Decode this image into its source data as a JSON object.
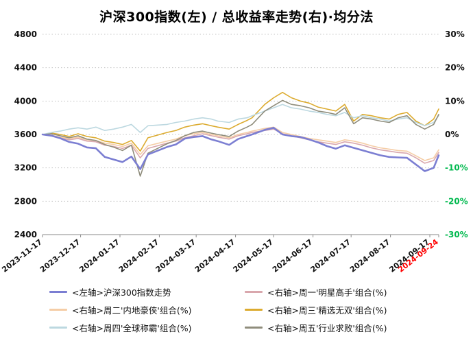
{
  "title": "沪深300指数(左) / 总收益率走势(右)·均分法",
  "chart_data": {
    "type": "line",
    "x": [
      "2023-11-17",
      "2023-11-24",
      "2023-12-01",
      "2023-12-08",
      "2023-12-15",
      "2023-12-22",
      "2023-12-29",
      "2024-01-05",
      "2024-01-12",
      "2024-01-19",
      "2024-01-26",
      "2024-02-02",
      "2024-02-08",
      "2024-02-23",
      "2024-03-01",
      "2024-03-08",
      "2024-03-15",
      "2024-03-22",
      "2024-03-29",
      "2024-04-03",
      "2024-04-12",
      "2024-04-19",
      "2024-04-26",
      "2024-04-30",
      "2024-05-10",
      "2024-05-17",
      "2024-05-24",
      "2024-05-31",
      "2024-06-07",
      "2024-06-14",
      "2024-06-21",
      "2024-06-28",
      "2024-07-05",
      "2024-07-12",
      "2024-07-19",
      "2024-07-26",
      "2024-08-02",
      "2024-08-09",
      "2024-08-16",
      "2024-08-23",
      "2024-08-30",
      "2024-09-06",
      "2024-09-13",
      "2024-09-20",
      "2024-09-24"
    ],
    "series": [
      {
        "name": "<左轴>沪深300指数走势",
        "axis": "left",
        "color": "#7b7ed2",
        "width": 2.6,
        "values": [
          3600,
          3585,
          3555,
          3510,
          3490,
          3445,
          3435,
          3330,
          3300,
          3270,
          3335,
          3185,
          3360,
          3450,
          3480,
          3550,
          3570,
          3580,
          3540,
          3520,
          3475,
          3545,
          3580,
          3600,
          3655,
          3680,
          3600,
          3580,
          3570,
          3540,
          3505,
          3460,
          3430,
          3470,
          3440,
          3410,
          3380,
          3350,
          3330,
          3325,
          3320,
          3240,
          3160,
          3200,
          3350
        ]
      },
      {
        "name": "<右轴>周一'明星高手'组合(%)",
        "axis": "right",
        "color": "#d9a7ad",
        "width": 1.6,
        "values": [
          0,
          -0.4,
          -1,
          -1.6,
          -1.2,
          -2,
          -2.2,
          -3.2,
          -3.6,
          -4.2,
          -3.2,
          -7,
          -4.2,
          -2.6,
          -2,
          -1,
          -0.4,
          0.2,
          -0.4,
          -0.8,
          -1.4,
          -0.4,
          0.2,
          0.6,
          1.2,
          1.6,
          0.2,
          -0.4,
          -1,
          -1.6,
          -2.2,
          -2.6,
          -3,
          -2.2,
          -2.6,
          -3.2,
          -4,
          -4.6,
          -5,
          -5.4,
          -5.6,
          -7,
          -8.6,
          -7.8,
          -5.4
        ]
      },
      {
        "name": "<右轴>周二'内地豪侠'组合(%)",
        "axis": "right",
        "color": "#f5cda6",
        "width": 1.6,
        "values": [
          0,
          -0.2,
          -0.8,
          -1.2,
          -0.8,
          -1.6,
          -1.8,
          -2.6,
          -3,
          -3.6,
          -2.6,
          -6,
          -3.4,
          -2,
          -1.4,
          -0.4,
          0.2,
          0.6,
          0,
          -0.4,
          -1,
          0,
          0.6,
          1,
          1.8,
          2.2,
          0.6,
          0,
          -0.6,
          -1.2,
          -1.6,
          -2,
          -2.4,
          -1.6,
          -2,
          -2.6,
          -3.4,
          -4,
          -4.4,
          -4.8,
          -5,
          -6.4,
          -7.8,
          -7,
          -4.6
        ]
      },
      {
        "name": "<右轴>周三'精选无双'组合(%)",
        "axis": "right",
        "color": "#dcab2f",
        "width": 1.6,
        "values": [
          0,
          0.4,
          0,
          -0.6,
          0.2,
          -0.6,
          -1,
          -2,
          -2.4,
          -3,
          -1.8,
          -5,
          -1,
          0.6,
          1.2,
          2.2,
          2.8,
          3.2,
          2.6,
          2.2,
          1.6,
          3,
          4.2,
          5,
          9,
          11,
          12.6,
          11,
          10,
          9.4,
          8.2,
          7.6,
          7,
          9,
          4,
          6,
          5.6,
          5,
          4.6,
          6,
          6.6,
          4,
          2.6,
          4.6,
          7.6
        ]
      },
      {
        "name": "<右轴>周四'全球称霸'组合(%)",
        "axis": "right",
        "color": "#bcd8e0",
        "width": 1.6,
        "values": [
          0,
          0.6,
          1,
          1.6,
          2,
          1.6,
          2.2,
          1.2,
          1.6,
          2.2,
          3,
          0.6,
          2.6,
          3,
          3.6,
          4,
          4.6,
          5,
          4.6,
          4,
          3.6,
          4.6,
          5,
          5.6,
          7,
          8,
          9,
          8,
          7.6,
          7,
          6.6,
          6,
          5.6,
          6.6,
          5,
          5.6,
          5,
          4.6,
          4,
          4.6,
          5,
          3.6,
          2.6,
          3.6,
          5.6
        ]
      },
      {
        "name": "<右轴>周五'行业求败'组合(%)",
        "axis": "right",
        "color": "#8f8d7c",
        "width": 1.6,
        "values": [
          0,
          0.2,
          -0.4,
          -1,
          -0.4,
          -1.4,
          -1.8,
          -3,
          -3.8,
          -4.8,
          -3.2,
          -12.5,
          -5.6,
          -2.8,
          -1.8,
          -0.4,
          0.6,
          1,
          0.4,
          0,
          -0.6,
          1,
          2.2,
          3,
          7,
          8.6,
          10.2,
          9,
          8.6,
          8,
          7,
          6.6,
          6,
          8,
          3.2,
          5,
          4.6,
          4,
          3.6,
          5,
          5.6,
          3,
          1.6,
          3,
          6
        ]
      }
    ],
    "left_axis": {
      "min": 2400,
      "max": 4800,
      "ticks": [
        4800,
        4400,
        4000,
        3600,
        3200,
        2800,
        2400
      ],
      "label_color": "#111111"
    },
    "right_axis": {
      "min": -30,
      "max": 30,
      "ticks": [
        "30%",
        "20%",
        "10%",
        "0%",
        "-10%",
        "-20%",
        "-30%"
      ],
      "positive_color": "#111111",
      "negative_color": "#00b94e"
    },
    "x_ticks": [
      {
        "label": "2023-11-17",
        "color": "#111111"
      },
      {
        "label": "2023-12-17",
        "color": "#111111"
      },
      {
        "label": "2024-01-17",
        "color": "#111111"
      },
      {
        "label": "2024-02-17",
        "color": "#111111"
      },
      {
        "label": "2024-03-17",
        "color": "#111111"
      },
      {
        "label": "2024-04-17",
        "color": "#111111"
      },
      {
        "label": "2024-05-17",
        "color": "#111111"
      },
      {
        "label": "2024-06-17",
        "color": "#111111"
      },
      {
        "label": "2024-07-17",
        "color": "#111111"
      },
      {
        "label": "2024-08-17",
        "color": "#111111"
      },
      {
        "label": "2024-09-17",
        "color": "#111111"
      },
      {
        "label": "2024-09-24",
        "color": "#ff0000"
      }
    ],
    "grid": "horizontal-dotted",
    "legend_position": "bottom"
  }
}
